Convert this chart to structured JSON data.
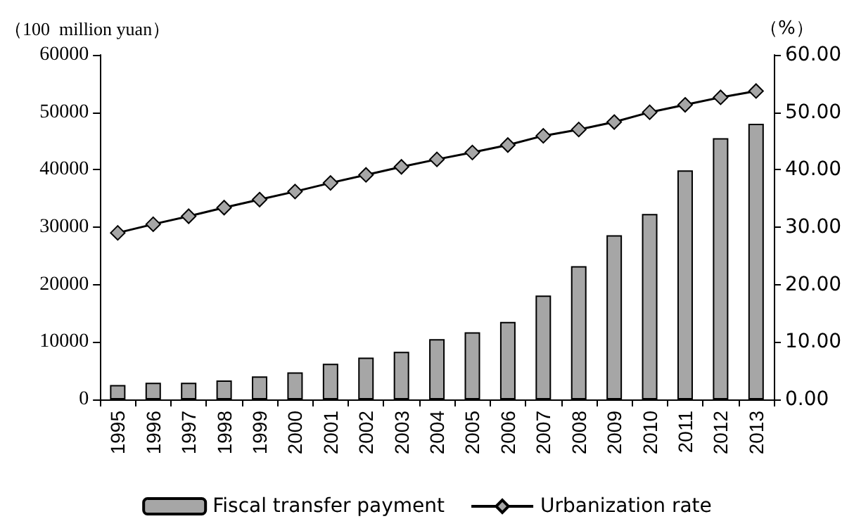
{
  "chart_data": {
    "type": "bar",
    "ylabel": "（100  million yuan）",
    "y2label": "（%）",
    "categories": [
      "1995",
      "1996",
      "1997",
      "1998",
      "1999",
      "2000",
      "2001",
      "2002",
      "2003",
      "2004",
      "2005",
      "2006",
      "2007",
      "2008",
      "2009",
      "2010",
      "2011",
      "2012",
      "2013"
    ],
    "series": [
      {
        "name": "Fiscal transfer payment",
        "color": "#a6a6a6",
        "values": [
          2500,
          2900,
          2900,
          3300,
          4000,
          4700,
          6200,
          7300,
          8300,
          10500,
          11700,
          13500,
          18100,
          23200,
          28600,
          32300,
          39900,
          45500,
          48000
        ]
      },
      {
        "name": "Urbanization rate",
        "type": "line",
        "axis": "y2",
        "color": "#000000",
        "marker": "diamond",
        "values": [
          29.0,
          30.5,
          31.9,
          33.4,
          34.8,
          36.2,
          37.7,
          39.1,
          40.5,
          41.8,
          43.0,
          44.3,
          45.9,
          47.0,
          48.3,
          50.0,
          51.3,
          52.6,
          53.7
        ]
      }
    ],
    "ylim": [
      0,
      60000
    ],
    "yticks": [
      0,
      10000,
      20000,
      30000,
      40000,
      50000,
      60000
    ],
    "y2lim": [
      0,
      60
    ],
    "y2ticks": [
      {
        "value": 0,
        "label": "0.00"
      },
      {
        "value": 10,
        "label": "10.00"
      },
      {
        "value": 20,
        "label": "20.00"
      },
      {
        "value": 30,
        "label": "30.00"
      },
      {
        "value": 40,
        "label": "40.00"
      },
      {
        "value": 50,
        "label": "50.00"
      },
      {
        "value": 60,
        "label": "60.00"
      }
    ],
    "grid": false,
    "legend": "bottom"
  }
}
